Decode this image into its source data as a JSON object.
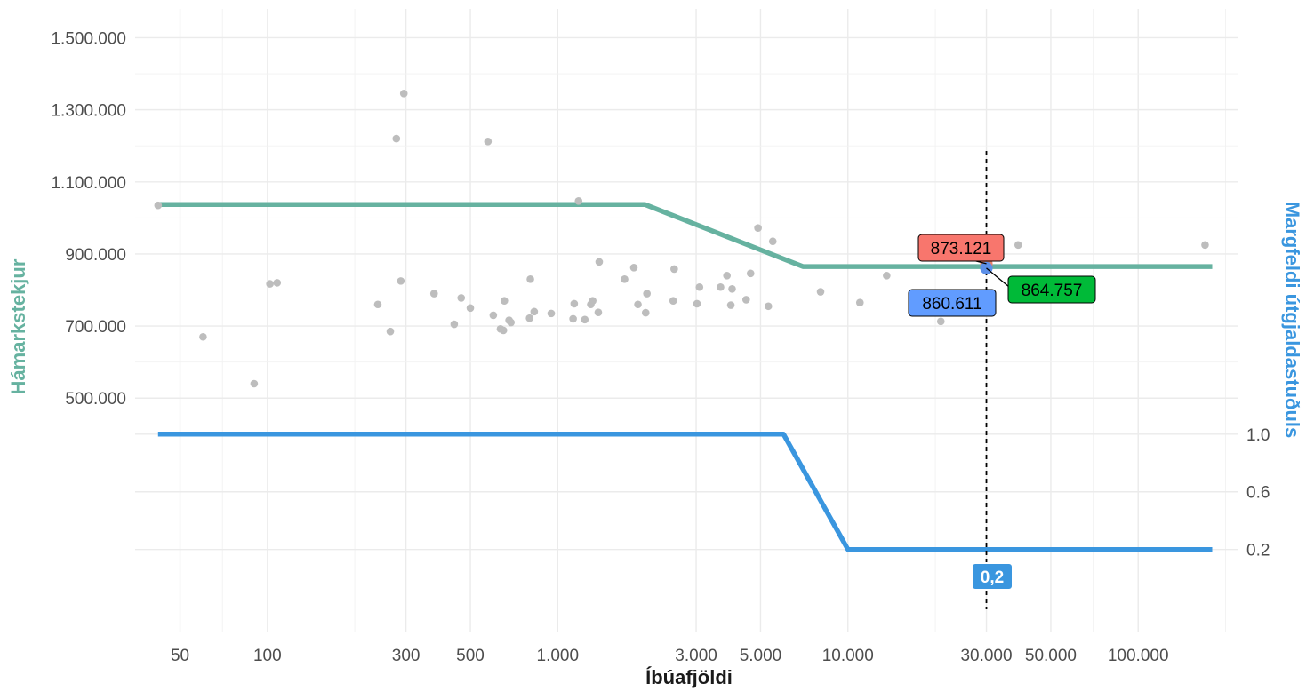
{
  "chart_data": {
    "type": "scatter",
    "xlabel": "Íbúafjöldi",
    "ylabel_left": "Hámarkstekjur",
    "ylabel_right": "Margfeldi útgjaldastuðuls",
    "x_scale": "log",
    "xlim": [
      35,
      220000
    ],
    "ylim_left": [
      -150000,
      1580000
    ],
    "x_ticks": [
      50,
      100,
      300,
      500,
      1000,
      3000,
      5000,
      10000,
      30000,
      50000,
      100000
    ],
    "x_tick_labels": [
      "50",
      "100",
      "300",
      "500",
      "1.000",
      "3.000",
      "5.000",
      "10.000",
      "30.000",
      "50.000",
      "100.000"
    ],
    "x_minor_ticks": [
      70,
      200,
      2000,
      20000,
      70000,
      200000
    ],
    "y_ticks_left": [
      500000,
      700000,
      900000,
      1100000,
      1300000,
      1500000
    ],
    "y_tick_labels_left": [
      "500.000",
      "700.000",
      "900.000",
      "1.100.000",
      "1.300.000",
      "1.500.000"
    ],
    "y_minor_left": [
      400000,
      600000,
      800000,
      1000000,
      1200000,
      1400000
    ],
    "right_axis": {
      "ticks": [
        1.0,
        0.6,
        0.2
      ],
      "tick_labels": [
        "1.0",
        "0.6",
        "0.2"
      ],
      "left_equivalent": [
        400000,
        240000,
        80000
      ]
    },
    "grid": true,
    "series": [
      {
        "kind": "line",
        "color": "#66b2a0",
        "points": [
          [
            42,
            1037000
          ],
          [
            2000,
            1037000
          ],
          [
            7000,
            865000
          ],
          [
            180000,
            865000
          ]
        ]
      },
      {
        "kind": "line",
        "axis": "right",
        "color": "#3a96df",
        "points": [
          [
            42,
            1.0
          ],
          [
            6000,
            1.0
          ],
          [
            10000,
            0.2
          ],
          [
            180000,
            0.2
          ]
        ]
      },
      {
        "kind": "scatter",
        "color": "#bdbdbd",
        "points": [
          [
            42,
            1035000
          ],
          [
            60,
            670000
          ],
          [
            90,
            540000
          ],
          [
            102,
            817000
          ],
          [
            108,
            820000
          ],
          [
            240,
            760000
          ],
          [
            265,
            685000
          ],
          [
            278,
            1220000
          ],
          [
            288,
            825000
          ],
          [
            295,
            1345000
          ],
          [
            375,
            790000
          ],
          [
            440,
            705000
          ],
          [
            465,
            778000
          ],
          [
            500,
            750000
          ],
          [
            575,
            1212000
          ],
          [
            600,
            730000
          ],
          [
            635,
            692000
          ],
          [
            650,
            688000
          ],
          [
            655,
            770000
          ],
          [
            680,
            716000
          ],
          [
            690,
            710000
          ],
          [
            800,
            722000
          ],
          [
            805,
            830000
          ],
          [
            830,
            740000
          ],
          [
            950,
            735000
          ],
          [
            1130,
            720000
          ],
          [
            1140,
            762000
          ],
          [
            1180,
            1047000
          ],
          [
            1240,
            718000
          ],
          [
            1300,
            760000
          ],
          [
            1320,
            770000
          ],
          [
            1380,
            738000
          ],
          [
            1390,
            878000
          ],
          [
            1700,
            830000
          ],
          [
            1830,
            862000
          ],
          [
            1890,
            760000
          ],
          [
            2010,
            737000
          ],
          [
            2030,
            790000
          ],
          [
            2500,
            770000
          ],
          [
            2520,
            858000
          ],
          [
            3020,
            762000
          ],
          [
            3080,
            808000
          ],
          [
            3640,
            808000
          ],
          [
            3830,
            840000
          ],
          [
            3950,
            758000
          ],
          [
            3990,
            803000
          ],
          [
            4460,
            773000
          ],
          [
            4620,
            846000
          ],
          [
            4900,
            972000
          ],
          [
            5320,
            755000
          ],
          [
            5510,
            935000
          ],
          [
            8050,
            795000
          ],
          [
            11000,
            765000
          ],
          [
            13600,
            840000
          ],
          [
            20900,
            713000
          ],
          [
            38600,
            925000
          ],
          [
            170000,
            925000
          ]
        ]
      }
    ],
    "marker_x": 30000,
    "highlight_points": [
      {
        "x": 30000,
        "y": 873121,
        "color": "#e8806a"
      },
      {
        "x": 30000,
        "y": 860611,
        "color": "#5c8fe8"
      }
    ],
    "annotations": [
      {
        "text": "873.121",
        "bg": "#f8766d"
      },
      {
        "text": "860.611",
        "bg": "#619cff"
      },
      {
        "text": "864.757",
        "bg": "#00ba38"
      },
      {
        "text": "0,2",
        "bg": "#3a96df"
      }
    ]
  }
}
